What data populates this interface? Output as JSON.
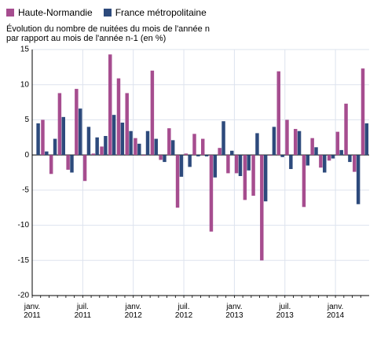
{
  "chart_data": {
    "type": "bar",
    "subtitle": [
      "Évolution du nombre de nuitées du mois de l'année n",
      "par rapport au mois de l'année n-1 (en %)"
    ],
    "categories": [
      "janv. 2011",
      null,
      null,
      null,
      null,
      null,
      "juil. 2011",
      null,
      null,
      null,
      null,
      null,
      "janv. 2012",
      null,
      null,
      null,
      null,
      null,
      "juil. 2012",
      null,
      null,
      null,
      null,
      null,
      "janv. 2013",
      null,
      null,
      null,
      null,
      null,
      "juil. 2013",
      null,
      null,
      null,
      null,
      null,
      "janv. 2014",
      null,
      null,
      null
    ],
    "series": [
      {
        "name": "Haute-Normandie",
        "color": "#a64d8f",
        "values": [
          null,
          5,
          -2.7,
          8.8,
          -2.1,
          9.4,
          -3.7,
          0.2,
          1.2,
          14.3,
          10.9,
          8.8,
          2.4,
          -0.1,
          12,
          -0.7,
          3.8,
          -7.5,
          0.2,
          3.0,
          2.3,
          -10.9,
          1.0,
          -2.6,
          -2.6,
          -6.4,
          -5.8,
          -15,
          -0.1,
          11.9,
          5.0,
          3.7,
          -7.4,
          2.4,
          -1.8,
          -0.8,
          3.3,
          7.3,
          -2.4,
          12.3
        ]
      },
      {
        "name": "France métropolitaine",
        "color": "#2d4a7c",
        "values": [
          4.5,
          0.5,
          2.3,
          5.4,
          -2.5,
          6.6,
          4.0,
          2.5,
          2.7,
          5.7,
          4.6,
          3.4,
          1.6,
          3.4,
          2.3,
          -1.0,
          2.1,
          -3.1,
          -1.7,
          -0.2,
          -0.2,
          -3.2,
          4.8,
          0.6,
          -3.0,
          -2.2,
          3.1,
          -6.6,
          4.0,
          -0.3,
          -2.0,
          3.4,
          -1.5,
          1.1,
          -2.5,
          -0.5,
          0.7,
          -1.0,
          -7.0,
          4.5
        ]
      }
    ],
    "ylim": [
      -20,
      15
    ],
    "yticks": [
      15,
      10,
      5,
      0,
      -5,
      -10,
      -15,
      -20
    ],
    "grid": true
  }
}
